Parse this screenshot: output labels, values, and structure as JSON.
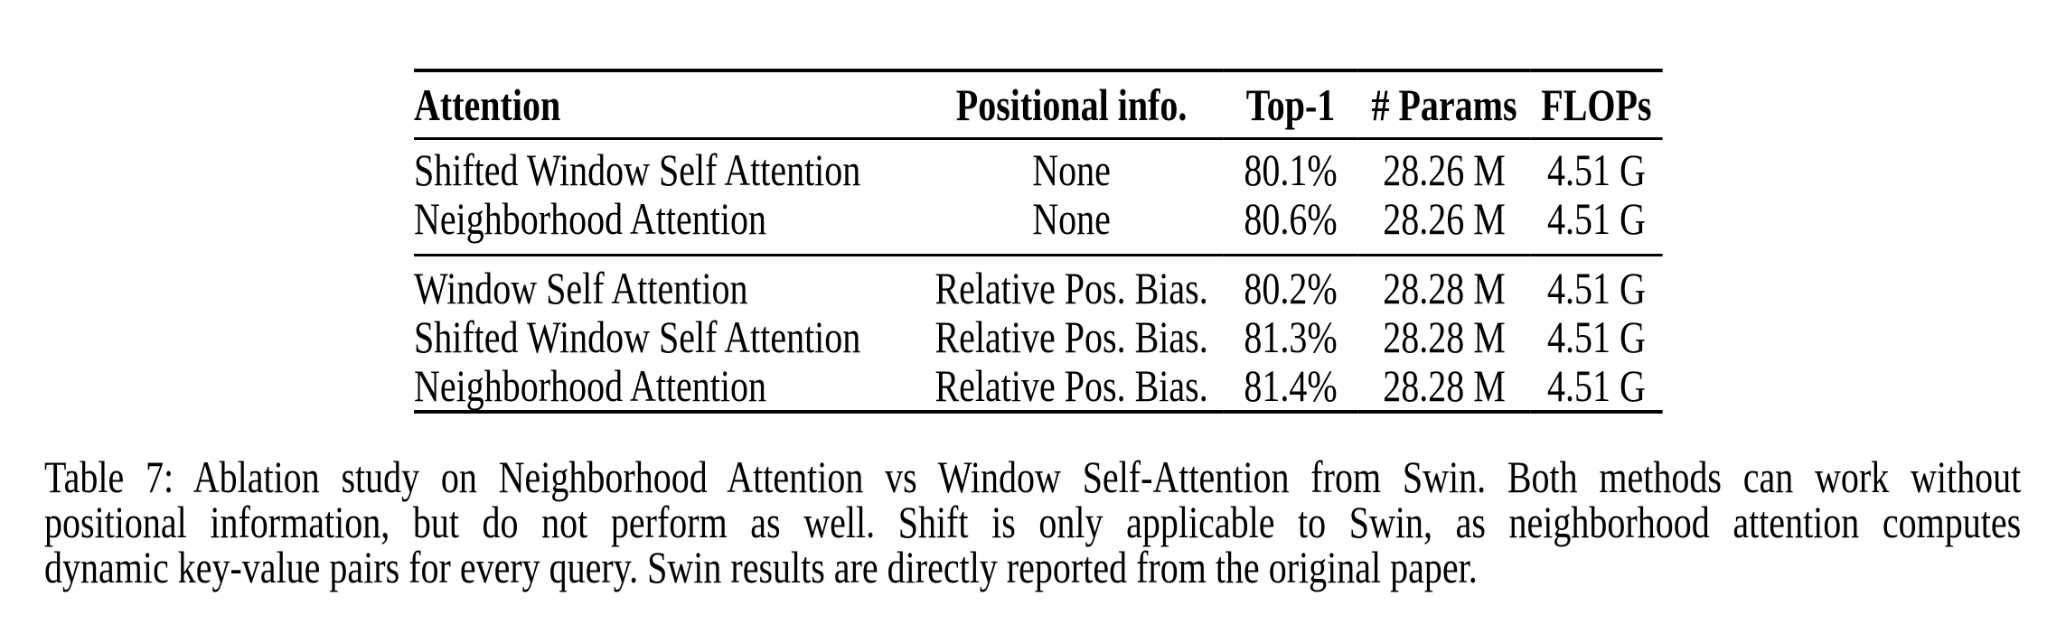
{
  "page": {
    "background_color": "#ffffff",
    "text_color": "#000000"
  },
  "table": {
    "headers": [
      "Attention",
      "Positional info.",
      "Top-1",
      "# Params",
      "FLOPs"
    ],
    "rows_group1": [
      [
        "Shifted Window Self Attention",
        "None",
        "80.1%",
        "28.26 M",
        "4.51 G"
      ],
      [
        "Neighborhood Attention",
        "None",
        "80.6%",
        "28.26 M",
        "4.51 G"
      ]
    ],
    "rows_group2": [
      [
        "Window Self Attention",
        "Relative Pos. Bias.",
        "80.2%",
        "28.28 M",
        "4.51 G"
      ],
      [
        "Shifted Window Self Attention",
        "Relative Pos. Bias.",
        "81.3%",
        "28.28 M",
        "4.51 G"
      ],
      [
        "Neighborhood Attention",
        "Relative Pos. Bias.",
        "81.4%",
        "28.28 M",
        "4.51 G"
      ]
    ]
  },
  "caption": {
    "lines": [
      "Table 7: Ablation study on Neighborhood Attention vs Window Self-Attention from Swin. Both methods can work without",
      "positional information, but do not perform as well.  Shift is only applicable to Swin, as neighborhood attention computes",
      "dynamic key-value pairs for every query. Swin results are directly reported from the original paper."
    ]
  }
}
